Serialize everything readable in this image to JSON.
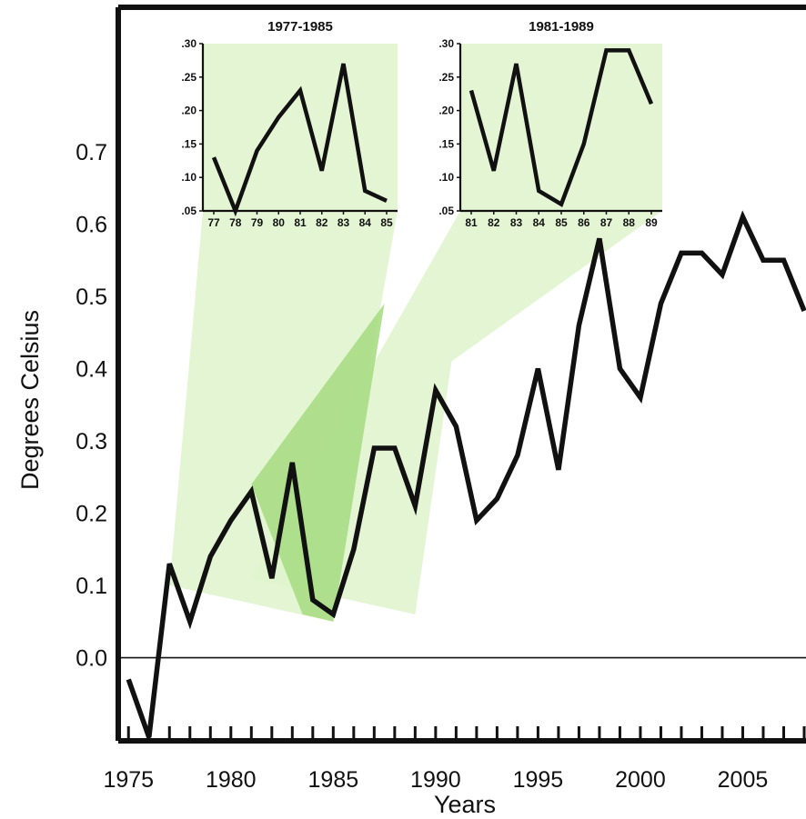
{
  "chart_data": [
    {
      "type": "line",
      "title": "",
      "xlabel": "Years",
      "ylabel": "Degrees Celsius",
      "xlim": [
        1974.5,
        2008
      ],
      "ylim": [
        -0.115,
        0.9
      ],
      "x_ticks": [
        1975,
        1980,
        1985,
        1990,
        1995,
        2000,
        2005
      ],
      "x_tick_labels": [
        "1975",
        "1980",
        "1985",
        "1990",
        "1995",
        "2000",
        "2005"
      ],
      "y_ticks": [
        0.0,
        0.1,
        0.2,
        0.3,
        0.4,
        0.5,
        0.6,
        0.7
      ],
      "y_tick_labels": [
        "0.0",
        "0.1",
        "0.2",
        "0.3",
        "0.4",
        "0.5",
        "0.6",
        "0.7"
      ],
      "zero_line": true,
      "series": [
        {
          "x": [
            1975,
            1976,
            1977,
            1978,
            1979,
            1980,
            1981,
            1982,
            1983,
            1984,
            1985,
            1986,
            1987,
            1988,
            1989,
            1990,
            1991,
            1992,
            1993,
            1994,
            1995,
            1996,
            1997,
            1998,
            1999,
            2000,
            2001,
            2002,
            2003,
            2004,
            2005,
            2006,
            2007,
            2008
          ],
          "y": [
            -0.03,
            -0.11,
            0.13,
            0.05,
            0.14,
            0.19,
            0.23,
            0.11,
            0.27,
            0.08,
            0.06,
            0.15,
            0.29,
            0.29,
            0.21,
            0.37,
            0.32,
            0.19,
            0.22,
            0.28,
            0.4,
            0.26,
            0.46,
            0.58,
            0.4,
            0.36,
            0.49,
            0.56,
            0.56,
            0.53,
            0.61,
            0.55,
            0.55,
            0.48
          ]
        }
      ],
      "color": "#111111",
      "highlight_color": "#dff3cc",
      "overlap_color": "#a8dd85"
    },
    {
      "type": "line",
      "title": "1977-1985",
      "ylim": [
        0.05,
        0.3
      ],
      "y_tick_labels": [
        ".05",
        ".10",
        ".15",
        ".20",
        ".25",
        ".30"
      ],
      "categories": [
        "77",
        "78",
        "79",
        "80",
        "81",
        "82",
        "83",
        "84",
        "85"
      ],
      "series": [
        {
          "values": [
            0.13,
            0.05,
            0.14,
            0.19,
            0.23,
            0.11,
            0.27,
            0.08,
            0.065
          ]
        }
      ]
    },
    {
      "type": "line",
      "title": "1981-1989",
      "ylim": [
        0.05,
        0.3
      ],
      "y_tick_labels": [
        ".05",
        ".10",
        ".15",
        ".20",
        ".25",
        ".30"
      ],
      "categories": [
        "81",
        "82",
        "83",
        "84",
        "85",
        "86",
        "87",
        "88",
        "89"
      ],
      "series": [
        {
          "values": [
            0.23,
            0.11,
            0.27,
            0.08,
            0.06,
            0.15,
            0.29,
            0.29,
            0.21
          ]
        }
      ]
    }
  ]
}
